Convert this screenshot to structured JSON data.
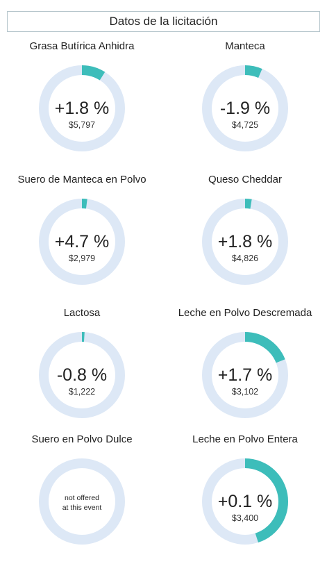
{
  "header": {
    "title": "Datos de la licitación"
  },
  "colors": {
    "ring_background": "#dde8f6",
    "ring_accent": "#3dbdba"
  },
  "products": [
    {
      "name": "Grasa Butírica Anhidra",
      "change": "+1.8 %",
      "price": "$5,797",
      "share": 0.09
    },
    {
      "name": "Manteca",
      "change": "-1.9 %",
      "price": "$4,725",
      "share": 0.065
    },
    {
      "name": "Suero de Manteca en Polvo",
      "change": "+4.7 %",
      "price": "$2,979",
      "share": 0.02
    },
    {
      "name": "Queso Cheddar",
      "change": "+1.8 %",
      "price": "$4,826",
      "share": 0.025
    },
    {
      "name": "Lactosa",
      "change": "-0.8 %",
      "price": "$1,222",
      "share": 0.01
    },
    {
      "name": "Leche en Polvo Descremada",
      "change": "+1.7 %",
      "price": "$3,102",
      "share": 0.19
    },
    {
      "name": "Suero en Polvo Dulce",
      "note_line1": "not offered",
      "note_line2": "at this event",
      "share": 0
    },
    {
      "name": "Leche en Polvo Entera",
      "change": "+0.1 %",
      "price": "$3,400",
      "share": 0.45
    }
  ]
}
